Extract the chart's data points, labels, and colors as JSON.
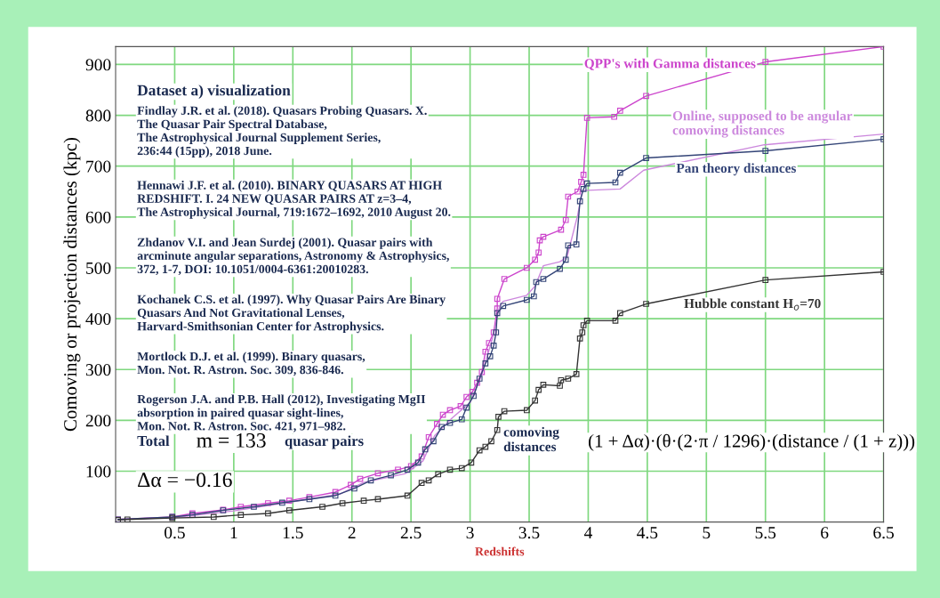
{
  "chart_data": {
    "type": "line",
    "xlabel": "Redshifts",
    "ylabel": "Comoving or projection distances (kpc)",
    "xlim": [
      0,
      6.5
    ],
    "ylim": [
      0,
      935
    ],
    "xticks": [
      0.5,
      1,
      1.5,
      2,
      2.5,
      3,
      3.5,
      4,
      4.5,
      5,
      5.5,
      6,
      6.5
    ],
    "yticks": [
      100,
      200,
      300,
      400,
      500,
      600,
      700,
      800,
      900
    ],
    "grid": true,
    "legend": false,
    "line_style": "solid",
    "series": [
      {
        "name": "QPP's with Gamma distances",
        "color": "#cc44cc",
        "marker": "square",
        "x": [
          0.02,
          0.48,
          0.65,
          0.91,
          1.06,
          1.29,
          1.47,
          1.64,
          1.86,
          1.99,
          2.07,
          2.22,
          2.39,
          2.5,
          2.59,
          2.65,
          2.72,
          2.77,
          2.83,
          2.92,
          2.97,
          3.02,
          3.06,
          3.1,
          3.13,
          3.16,
          3.2,
          3.23,
          3.23,
          3.29,
          3.48,
          3.55,
          3.58,
          3.59,
          3.62,
          3.77,
          3.81,
          3.83,
          3.91,
          3.94,
          3.96,
          3.99,
          4.22,
          4.27,
          4.49,
          5.5,
          6.5
        ],
        "values": [
          5,
          10,
          17,
          24,
          30,
          37,
          42,
          49,
          59,
          73,
          85,
          96,
          103,
          110,
          129,
          167,
          193,
          211,
          220,
          228,
          246,
          256,
          274,
          295,
          335,
          352,
          373,
          420,
          439,
          478,
          500,
          516,
          530,
          554,
          561,
          575,
          594,
          640,
          650,
          669,
          683,
          795,
          797,
          809,
          838,
          905,
          935
        ]
      },
      {
        "name": "Online, supposed to be angular\ncomoving distances",
        "color": "#cc88dd",
        "marker": "none",
        "x": [
          0.02,
          0.5,
          1.0,
          1.5,
          1.9,
          2.1,
          2.45,
          2.6,
          2.7,
          2.85,
          3.0,
          3.1,
          3.2,
          3.25,
          3.28,
          3.48,
          3.55,
          3.62,
          3.76,
          3.82,
          3.91,
          3.95,
          4.27,
          4.47,
          5.49,
          6.5
        ],
        "values": [
          5,
          9,
          22,
          40,
          55,
          78,
          95,
          120,
          170,
          205,
          235,
          290,
          370,
          425,
          434,
          446,
          464,
          504,
          512,
          521,
          603,
          652,
          655,
          692,
          742,
          763
        ]
      },
      {
        "name": "Pan theory distances",
        "color": "#334477",
        "marker": "square",
        "x": [
          0.02,
          0.48,
          0.65,
          0.91,
          1.17,
          1.41,
          1.64,
          1.86,
          2.02,
          2.16,
          2.33,
          2.47,
          2.56,
          2.62,
          2.69,
          2.76,
          2.83,
          2.93,
          2.97,
          3.03,
          3.08,
          3.13,
          3.17,
          3.2,
          3.22,
          3.23,
          3.28,
          3.48,
          3.54,
          3.56,
          3.62,
          3.76,
          3.81,
          3.83,
          3.9,
          3.93,
          3.96,
          3.99,
          4.23,
          4.27,
          4.49,
          5.5,
          6.5
        ],
        "values": [
          5,
          10,
          14,
          23,
          30,
          38,
          45,
          52,
          66,
          82,
          92,
          103,
          117,
          143,
          159,
          187,
          195,
          202,
          225,
          248,
          282,
          312,
          326,
          347,
          373,
          411,
          425,
          437,
          444,
          472,
          478,
          498,
          516,
          544,
          546,
          631,
          655,
          666,
          668,
          687,
          716,
          730,
          753
        ]
      },
      {
        "name": "Hubble constant H$_{o}$=70",
        "color": "#333333",
        "marker": "square",
        "x": [
          0.02,
          0.1,
          0.48,
          0.83,
          1.06,
          1.29,
          1.47,
          1.75,
          1.92,
          2.1,
          2.22,
          2.47,
          2.59,
          2.65,
          2.73,
          2.83,
          2.93,
          3.01,
          3.08,
          3.13,
          3.18,
          3.23,
          3.24,
          3.29,
          3.48,
          3.55,
          3.58,
          3.62,
          3.76,
          3.77,
          3.83,
          3.9,
          3.93,
          3.95,
          3.96,
          3.99,
          4.23,
          4.27,
          4.49,
          5.5,
          6.5
        ],
        "values": [
          4,
          5,
          8,
          10,
          14,
          17,
          23,
          30,
          37,
          42,
          45,
          52,
          77,
          82,
          94,
          103,
          106,
          117,
          141,
          148,
          159,
          181,
          207,
          218,
          220,
          239,
          260,
          270,
          268,
          279,
          282,
          291,
          361,
          373,
          387,
          396,
          396,
          411,
          429,
          476,
          492
        ]
      }
    ],
    "annotations": [
      "Dataset a) visualization",
      "Findlay J.R. et al. (2018). Quasars Probing Quasars. X.\nThe Quasar Pair Spectral Database,\nThe Astrophysical Journal Supplement Series,\n236:44 (15pp), 2018 June.",
      "Hennawi J.F. et al. (2010). BINARY QUASARS AT HIGH\nREDSHIFT. I. 24 NEW QUASAR PAIRS AT z=3–4,\nThe Astrophysical Journal, 719:1672–1692, 2010 August 20.",
      "Zhdanov V.I. and Jean Surdej (2001). Quasar pairs with\narcminute angular separations, Astronomy & Astrophysics,\n372, 1-7, DOI: 10.1051/0004-6361:20010283.",
      "Kochanek C.S. et al. (1997). Why Quasar Pairs Are Binary\nQuasars And Not Gravitational Lenses,\nHarvard-Smithsonian Center for Astrophysics.",
      "Mortlock D.J. et al. (1999). Binary quasars,\nMon. Not. R. Astron. Soc. 309, 836-846.",
      "Rogerson J.A. and P.B. Hall (2012), Investigating MgII\nabsorption in paired quasar sight-lines,\nMon. Not. R. Astron. Soc. 421, 971–982.",
      "Total",
      "m = 133",
      "quasar pairs",
      "Δα = −0.16",
      "comoving\ndistances",
      "(1 + Δα)·(θ·(2·π / 1296)·(distance / (1 + z)))"
    ]
  }
}
